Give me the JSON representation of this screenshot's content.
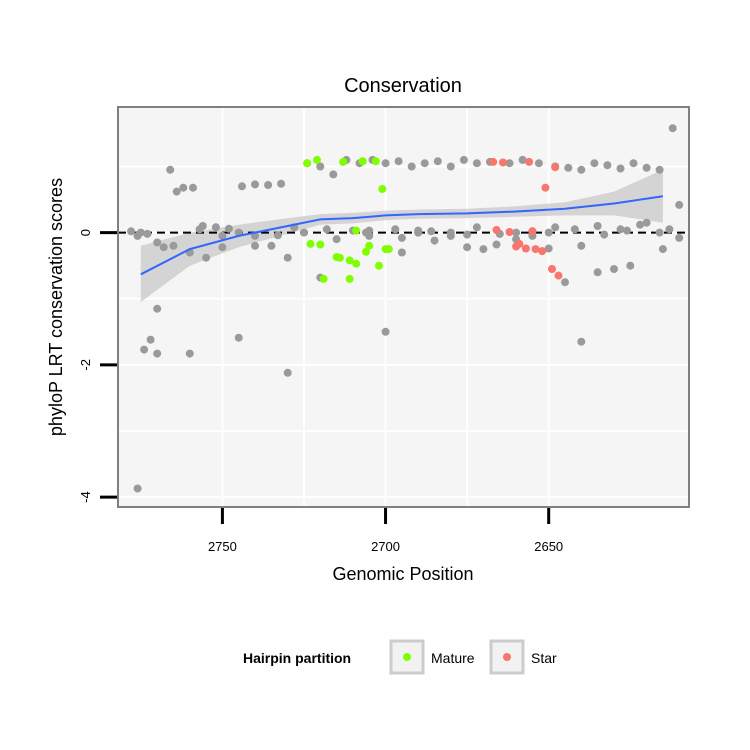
{
  "chart_data": {
    "type": "scatter",
    "title": "Conservation",
    "xlabel": "Genomic Position",
    "ylabel": "phyloP LRT conservation scores",
    "x_reversed": true,
    "xlim": [
      2782,
      2607
    ],
    "ylim": [
      -4.15,
      1.9
    ],
    "x_ticks": [
      2750,
      2700,
      2650
    ],
    "x_tick_labels": [
      "2750",
      "2700",
      "2650"
    ],
    "y_ticks": [
      -4,
      -2,
      0
    ],
    "y_tick_labels": [
      "-4",
      "-2",
      "0"
    ],
    "grid": true,
    "reference_line": {
      "y": 0,
      "style": "dashed"
    },
    "legend": {
      "title": "Hairpin partition",
      "position": "bottom",
      "entries": [
        {
          "label": "Mature",
          "color": "#7FFF00"
        },
        {
          "label": "Star",
          "color": "#F8766D"
        }
      ]
    },
    "colors": {
      "background": "#f5f5f5",
      "other": "#9a9a9a",
      "mature": "#7FFF00",
      "star": "#F8766D",
      "smooth": "#3366FF",
      "ribbon": "#cccccc"
    },
    "smooth": {
      "x": [
        2775,
        2760,
        2745,
        2730,
        2720,
        2710,
        2700,
        2690,
        2675,
        2660,
        2645,
        2630,
        2615
      ],
      "y": [
        -0.63,
        -0.25,
        -0.05,
        0.1,
        0.2,
        0.22,
        0.26,
        0.28,
        0.29,
        0.32,
        0.36,
        0.44,
        0.55
      ],
      "lower": [
        -1.05,
        -0.5,
        -0.22,
        -0.02,
        0.12,
        0.14,
        0.19,
        0.21,
        0.22,
        0.24,
        0.26,
        0.26,
        0.15
      ],
      "upper": [
        -0.2,
        0.0,
        0.12,
        0.22,
        0.28,
        0.3,
        0.33,
        0.35,
        0.36,
        0.4,
        0.46,
        0.62,
        0.95
      ]
    },
    "series": [
      {
        "name": "Mature",
        "x": [
          2724,
          2720,
          2723,
          2719,
          2721,
          2715,
          2714,
          2713,
          2711,
          2711,
          2709,
          2709,
          2707,
          2707,
          2706,
          2705,
          2703,
          2702,
          2701,
          2700,
          2699
        ],
        "y": [
          1.05,
          -0.18,
          -0.17,
          -0.7,
          1.1,
          -0.37,
          -0.38,
          1.07,
          -0.7,
          -0.42,
          0.03,
          -0.47,
          1.08,
          1.08,
          -0.29,
          -0.2,
          1.08,
          -0.5,
          0.66,
          -0.25,
          -0.25
        ]
      },
      {
        "name": "Star",
        "x": [
          2667,
          2666,
          2664,
          2662,
          2660,
          2659,
          2657,
          2656,
          2655,
          2654,
          2652,
          2651,
          2649,
          2648,
          2647
        ],
        "y": [
          1.07,
          0.04,
          1.06,
          0.01,
          -0.21,
          -0.17,
          -0.24,
          1.07,
          0.02,
          -0.25,
          -0.28,
          0.68,
          -0.55,
          0.99,
          -0.65
        ]
      },
      {
        "name": "other",
        "x": [
          2776,
          2774,
          2772,
          2770,
          2768,
          2766,
          2764,
          2762,
          2759,
          2756,
          2752,
          2748,
          2744,
          2740,
          2736,
          2732,
          2728,
          2724,
          2720,
          2716,
          2712,
          2708,
          2704,
          2700,
          2696,
          2692,
          2688,
          2684,
          2680,
          2676,
          2672,
          2668,
          2662,
          2658,
          2653,
          2648,
          2644,
          2640,
          2636,
          2632,
          2628,
          2624,
          2620,
          2616,
          2612,
          2776,
          2773,
          2770,
          2765,
          2760,
          2755,
          2750,
          2745,
          2740,
          2735,
          2730,
          2725,
          2720,
          2715,
          2710,
          2705,
          2700,
          2695,
          2690,
          2685,
          2680,
          2675,
          2670,
          2665,
          2660,
          2655,
          2650,
          2645,
          2640,
          2635,
          2630,
          2625,
          2620,
          2615,
          2610,
          2775,
          2770,
          2760,
          2750,
          2740,
          2730,
          2718,
          2706,
          2695,
          2690,
          2686,
          2680,
          2672,
          2666,
          2660,
          2655,
          2648,
          2640,
          2635,
          2628,
          2622,
          2616,
          2610,
          2778,
          2757,
          2745,
          2733,
          2705,
          2697,
          2690,
          2675,
          2650,
          2642,
          2633,
          2626,
          2613
        ],
        "y": [
          -3.87,
          -1.77,
          -1.62,
          -1.15,
          -0.22,
          0.95,
          0.62,
          0.68,
          0.68,
          0.1,
          0.08,
          0.06,
          0.7,
          0.73,
          0.72,
          0.74,
          0.08,
          1.05,
          1.0,
          0.88,
          1.1,
          1.05,
          1.1,
          1.05,
          1.08,
          1.0,
          1.05,
          1.08,
          1.0,
          1.1,
          1.05,
          1.07,
          1.05,
          1.1,
          1.05,
          1.0,
          0.98,
          0.95,
          1.05,
          1.02,
          0.97,
          1.05,
          0.98,
          0.95,
          1.58,
          -0.05,
          -0.02,
          -1.83,
          -0.2,
          -1.83,
          -0.38,
          -0.22,
          -1.59,
          -0.05,
          -0.2,
          -0.38,
          0.0,
          -0.68,
          -0.1,
          0.03,
          -0.05,
          -1.5,
          -0.3,
          0.03,
          -0.12,
          0.0,
          -0.22,
          -0.25,
          -0.02,
          0.0,
          -0.05,
          -0.24,
          -0.75,
          -1.65,
          -0.6,
          -0.55,
          -0.5,
          0.15,
          -0.25,
          -0.08,
          0.0,
          -0.15,
          -0.3,
          -0.05,
          -0.2,
          -2.12,
          0.05,
          0.0,
          -0.08,
          0.0,
          0.02,
          -0.05,
          0.08,
          -0.18,
          -0.1,
          0.02,
          0.08,
          -0.2,
          0.1,
          0.05,
          0.12,
          0.0,
          0.42,
          0.02,
          0.05,
          0.0,
          -0.04,
          0.03,
          0.05,
          0.0,
          -0.03,
          0.0,
          0.05,
          -0.03,
          0.03,
          0.05
        ]
      }
    ]
  }
}
